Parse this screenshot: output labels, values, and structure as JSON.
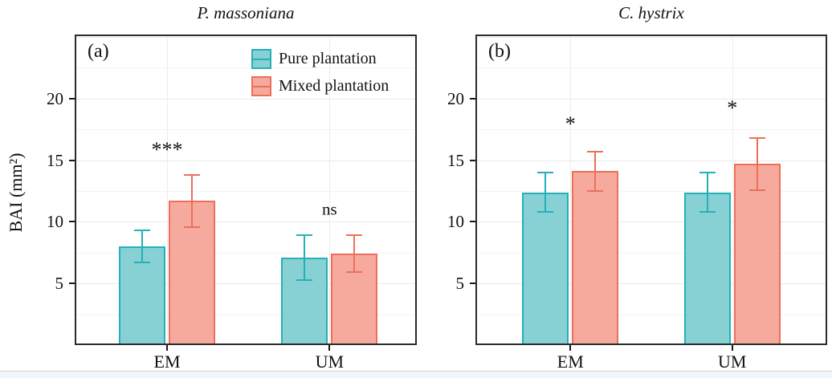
{
  "figure": {
    "y_axis_label": "BAI (mm²)"
  },
  "legend": {
    "items": [
      {
        "label": "Pure plantation",
        "fill": "#87D1D4",
        "stroke": "#25B0B7"
      },
      {
        "label": "Mixed plantation",
        "fill": "#F6AA9E",
        "stroke": "#EC6F5A"
      }
    ]
  },
  "chart_data": [
    {
      "type": "bar",
      "panel_label": "(a)",
      "title": "P. massoniana",
      "ylabel": "BAI (mm²)",
      "categories": [
        "EM",
        "UM"
      ],
      "series": [
        {
          "name": "Pure plantation",
          "fill": "#87D1D4",
          "stroke": "#25B0B7",
          "values": [
            8.0,
            7.1
          ],
          "errors": [
            1.3,
            1.8
          ]
        },
        {
          "name": "Mixed plantation",
          "fill": "#F6AA9E",
          "stroke": "#EC6F5A",
          "values": [
            11.7,
            7.4
          ],
          "errors": [
            2.1,
            1.5
          ]
        }
      ],
      "significance": [
        {
          "label": "***",
          "y": 15.8
        },
        {
          "label": "ns",
          "y": 11.0
        }
      ],
      "ylim": [
        0,
        25.2
      ],
      "yticks": [
        5,
        10,
        15,
        20
      ],
      "grid": "major+minor horizontal, vertical at categories",
      "legend_position": "top-center of panel (a)"
    },
    {
      "type": "bar",
      "panel_label": "(b)",
      "title": "C. hystrix",
      "ylabel": "",
      "categories": [
        "EM",
        "UM"
      ],
      "series": [
        {
          "name": "Pure plantation",
          "fill": "#87D1D4",
          "stroke": "#25B0B7",
          "values": [
            12.4,
            12.4
          ],
          "errors": [
            1.6,
            1.6
          ]
        },
        {
          "name": "Mixed plantation",
          "fill": "#F6AA9E",
          "stroke": "#EC6F5A",
          "values": [
            14.1,
            14.7
          ],
          "errors": [
            1.6,
            2.1
          ]
        }
      ],
      "significance": [
        {
          "label": "*",
          "y": 17.9
        },
        {
          "label": "*",
          "y": 19.2
        }
      ],
      "ylim": [
        0,
        25.2
      ],
      "yticks": [
        5,
        10,
        15,
        20
      ],
      "grid": "major+minor horizontal, vertical at categories",
      "legend_position": "none"
    }
  ]
}
